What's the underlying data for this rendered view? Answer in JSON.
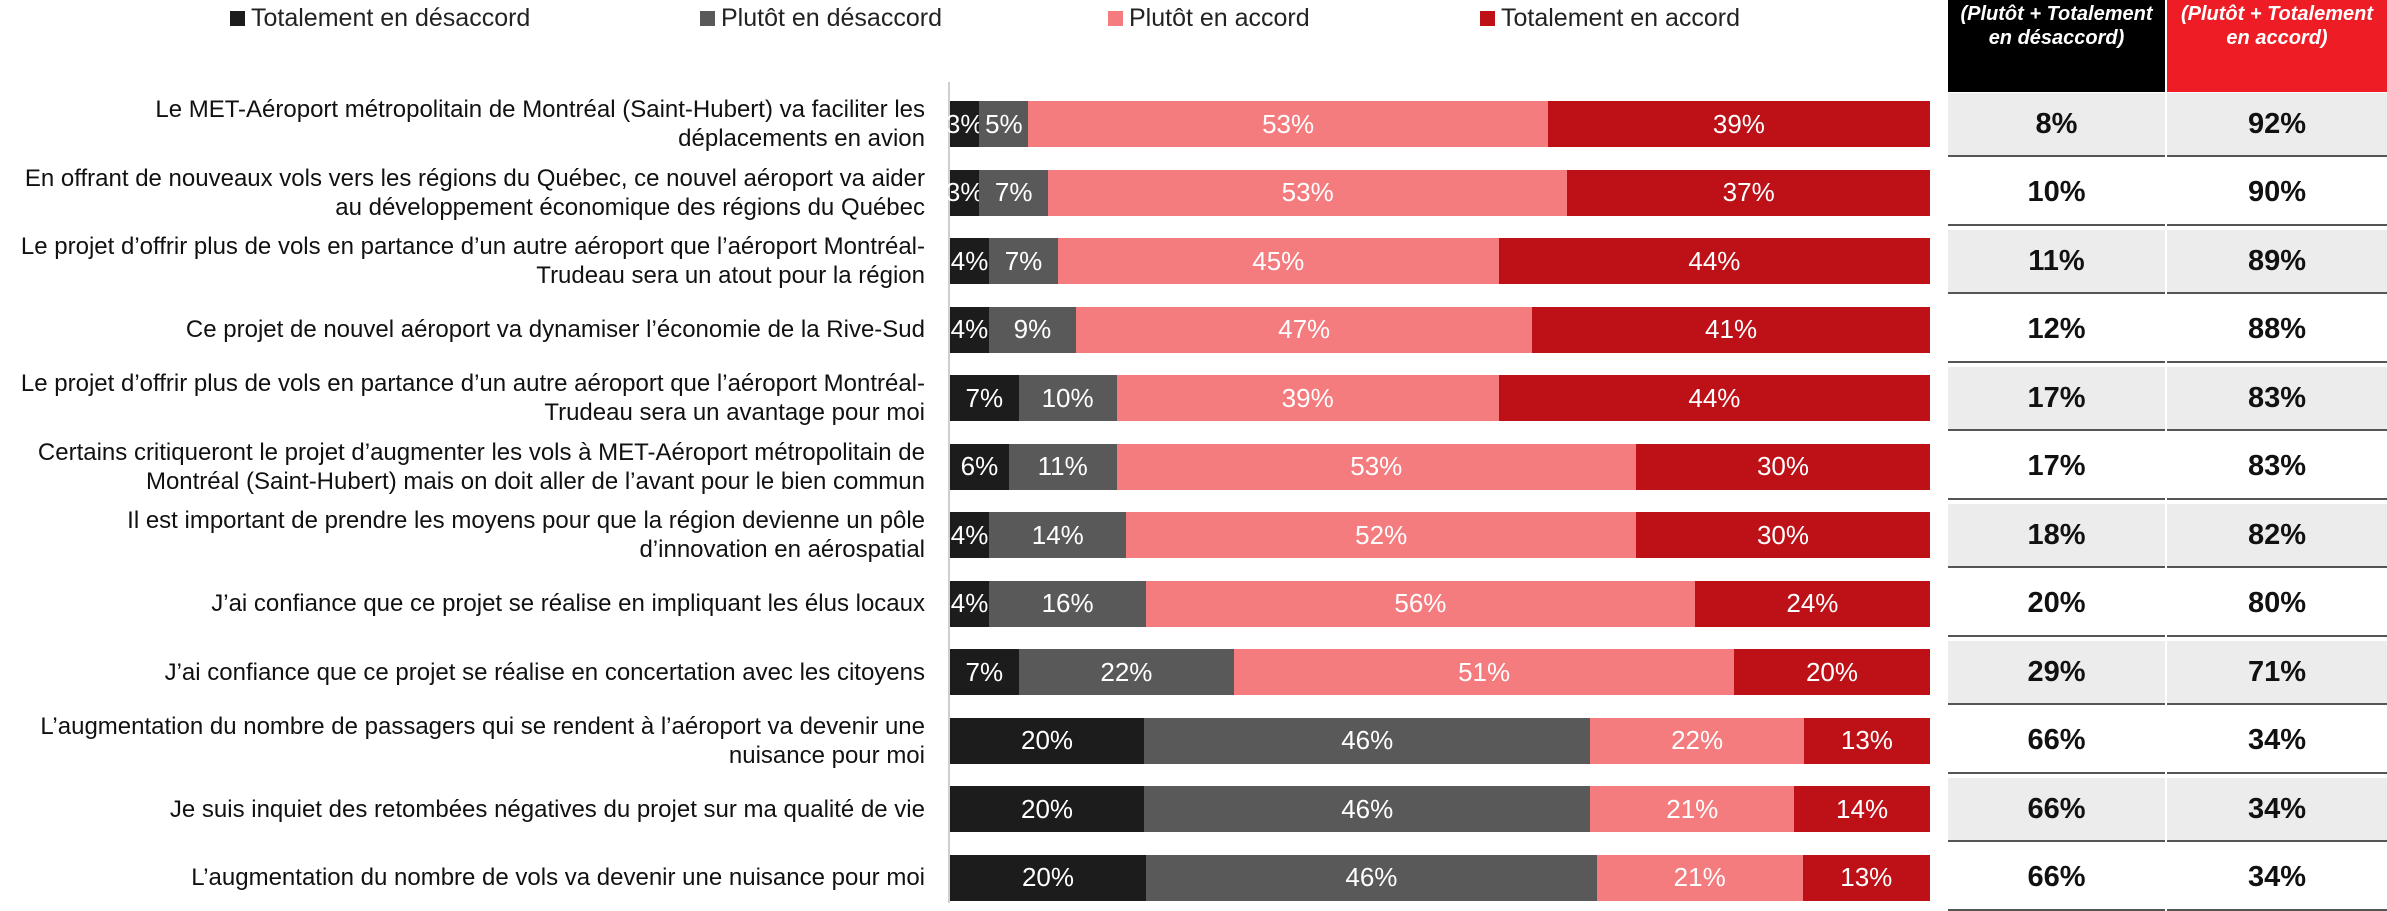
{
  "legend": [
    {
      "label": "Totalement en désaccord",
      "color": "#1c1c1c"
    },
    {
      "label": "Plutôt en désaccord",
      "color": "#595959"
    },
    {
      "label": "Plutôt en accord",
      "color": "#f47b7e"
    },
    {
      "label": "Totalement en accord",
      "color": "#bd1017"
    }
  ],
  "summary_headers": {
    "disagree": "(Plutôt + Totalement en désaccord)",
    "agree": "(Plutôt + Totalement en accord)"
  },
  "chart_data": {
    "type": "bar",
    "orientation": "horizontal",
    "stacked": true,
    "percent": true,
    "categories": [
      "Le MET-Aéroport métropolitain de Montréal (Saint-Hubert) va faciliter les déplacements en avion",
      "En offrant de nouveaux vols vers les régions du Québec, ce nouvel aéroport va aider au développement économique des régions du Québec",
      "Le projet d’offrir plus de vols en partance d’un autre aéroport que l’aéroport Montréal-Trudeau sera un atout pour la région",
      "Ce projet de nouvel aéroport va dynamiser l’économie de la Rive-Sud",
      "Le projet d’offrir plus de vols en partance d’un autre aéroport que l’aéroport Montréal-Trudeau sera un avantage pour moi",
      "Certains critiqueront le projet d’augmenter les vols à MET-Aéroport métropolitain de Montréal (Saint-Hubert) mais on doit aller de l’avant pour le bien commun",
      "Il est important de prendre les moyens pour que la région devienne un pôle d’innovation en aérospatial",
      "J’ai confiance que ce projet se réalise en impliquant les élus locaux",
      "J’ai confiance que ce projet se réalise en concertation avec les citoyens",
      "L’augmentation du nombre de passagers qui se rendent à l’aéroport va devenir une nuisance pour moi",
      "Je suis inquiet des retombées négatives du projet sur ma qualité de vie",
      "L’augmentation du nombre de vols va devenir une nuisance pour moi"
    ],
    "series": [
      {
        "name": "Totalement en désaccord",
        "color": "#1c1c1c",
        "values": [
          3,
          3,
          4,
          4,
          7,
          6,
          4,
          4,
          7,
          20,
          20,
          20
        ]
      },
      {
        "name": "Plutôt en désaccord",
        "color": "#595959",
        "values": [
          5,
          7,
          7,
          9,
          10,
          11,
          14,
          16,
          22,
          46,
          46,
          46
        ]
      },
      {
        "name": "Plutôt en accord",
        "color": "#f47b7e",
        "values": [
          53,
          53,
          45,
          47,
          39,
          53,
          52,
          56,
          51,
          22,
          21,
          21
        ]
      },
      {
        "name": "Totalement en accord",
        "color": "#bd1017",
        "values": [
          39,
          37,
          44,
          41,
          44,
          30,
          30,
          24,
          20,
          13,
          14,
          13
        ]
      }
    ],
    "totals_disagree": [
      "8%",
      "10%",
      "11%",
      "12%",
      "17%",
      "17%",
      "18%",
      "20%",
      "29%",
      "66%",
      "66%",
      "66%"
    ],
    "totals_agree": [
      "92%",
      "90%",
      "89%",
      "88%",
      "83%",
      "83%",
      "82%",
      "80%",
      "71%",
      "34%",
      "34%",
      "34%"
    ],
    "legend_position": "top"
  }
}
